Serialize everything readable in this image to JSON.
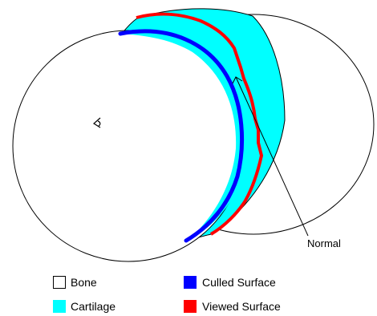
{
  "labels": {
    "normal": "Normal"
  },
  "legend": [
    {
      "label": "Bone",
      "color": "#ffffff",
      "border": "#000000"
    },
    {
      "label": "Cartilage",
      "color": "#00ffff",
      "border": "#00ffff"
    },
    {
      "label": "Culled Surface",
      "color": "#0000ff",
      "border": "#0000ff"
    },
    {
      "label": "Viewed Surface",
      "color": "#ff0000",
      "border": "#ff0000"
    }
  ],
  "colors": {
    "bone": "#ffffff",
    "outline": "#000000",
    "cartilage": "#00ffff",
    "culled": "#0000ff",
    "viewed": "#ff0000"
  },
  "icons": {
    "eye": "eye-icon",
    "normal_arrow": "arrow-icon"
  }
}
